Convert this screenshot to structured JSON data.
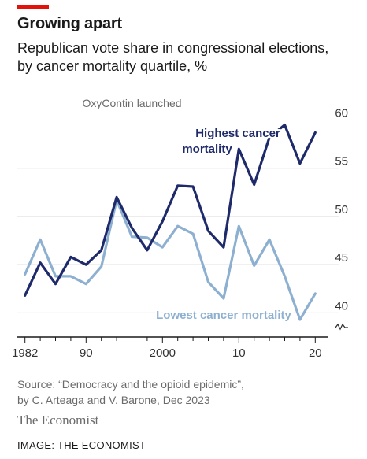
{
  "header": {
    "accent_color": "#e3120b",
    "title": "Growing apart",
    "subtitle_line1": "Republican vote share in congressional elections,",
    "subtitle_line2": "by cancer mortality quartile, %"
  },
  "chart_data": {
    "type": "line",
    "title": "Growing apart",
    "subtitle": "Republican vote share in congressional elections, by cancer mortality quartile, %",
    "xlabel": "",
    "ylabel": "%",
    "xlim": [
      1981,
      2021
    ],
    "ylim": [
      37.5,
      62
    ],
    "grid": true,
    "broken_axis": true,
    "x_ticks": [
      1982,
      1990,
      2000,
      2010,
      2020
    ],
    "x_tick_labels": [
      "1982",
      "90",
      "2000",
      "10",
      "20"
    ],
    "y_ticks": [
      40,
      45,
      50,
      55,
      60
    ],
    "y_tick_labels": [
      "40",
      "45",
      "50",
      "55",
      "60"
    ],
    "annotation": {
      "label": "OxyContin launched",
      "x": 1996
    },
    "series": [
      {
        "name": "Highest cancer mortality",
        "label_line1": "Highest cancer",
        "label_line2": "mortality",
        "color": "#1f2a6b",
        "x": [
          1982,
          1984,
          1986,
          1988,
          1990,
          1992,
          1994,
          1996,
          1998,
          2000,
          2002,
          2004,
          2006,
          2008,
          2010,
          2012,
          2014,
          2016,
          2018,
          2020
        ],
        "y": [
          41.8,
          45.2,
          43.0,
          45.8,
          45.0,
          46.5,
          52.0,
          48.8,
          46.5,
          49.5,
          53.2,
          53.1,
          48.5,
          46.8,
          57.0,
          53.3,
          58.2,
          59.5,
          55.5,
          58.7
        ]
      },
      {
        "name": "Lowest cancer mortality",
        "label_line1": "Lowest cancer mortality",
        "color": "#8db0d1",
        "x": [
          1982,
          1984,
          1986,
          1988,
          1990,
          1992,
          1994,
          1996,
          1998,
          2000,
          2002,
          2004,
          2006,
          2008,
          2010,
          2012,
          2014,
          2016,
          2018,
          2020
        ],
        "y": [
          44.0,
          47.6,
          43.8,
          43.8,
          43.0,
          44.8,
          51.7,
          47.9,
          47.8,
          46.8,
          49.0,
          48.2,
          43.2,
          41.5,
          49.0,
          44.9,
          47.6,
          43.8,
          39.3,
          42.0
        ]
      }
    ]
  },
  "footer": {
    "source_line1": "Source: “Democracy and the opioid epidemic”,",
    "source_line2": "by C. Arteaga and V. Barone, Dec 2023",
    "brand": "The Economist",
    "credit": "IMAGE: THE ECONOMIST"
  }
}
